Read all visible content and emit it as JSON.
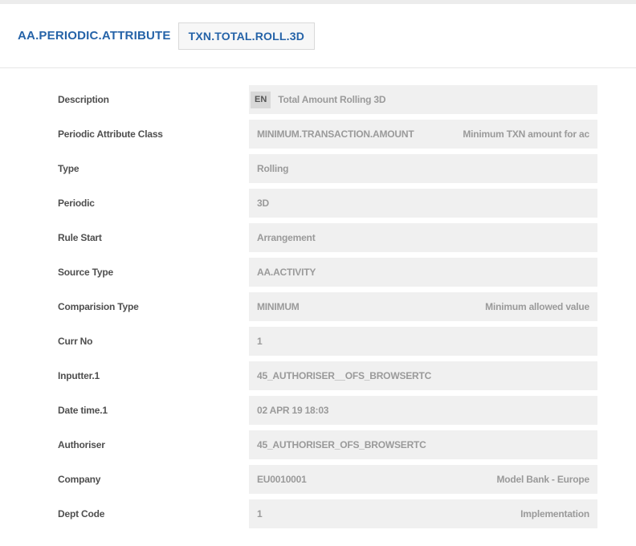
{
  "header": {
    "title": "AA.PERIODIC.ATTRIBUTE",
    "record_id": "TXN.TOTAL.ROLL.3D"
  },
  "colors": {
    "title_blue": "#2563a8",
    "field_background": "#f0f0f0",
    "field_text": "#9a9a9a",
    "label_text": "#4f4f4f",
    "badge_background": "#d8d8d8",
    "top_strip": "#ececec"
  },
  "form": {
    "rows": [
      {
        "label": "Description",
        "badge": "EN",
        "value": "Total Amount Rolling 3D",
        "enrichment": ""
      },
      {
        "label": "Periodic Attribute Class",
        "value": "MINIMUM.TRANSACTION.AMOUNT",
        "enrichment": "Minimum TXN amount for ac"
      },
      {
        "label": "Type",
        "value": "Rolling",
        "enrichment": ""
      },
      {
        "label": "Periodic",
        "value": "3D",
        "enrichment": ""
      },
      {
        "label": "Rule Start",
        "value": "Arrangement",
        "enrichment": ""
      },
      {
        "label": "Source Type",
        "value": "AA.ACTIVITY",
        "enrichment": ""
      },
      {
        "label": "Comparision Type",
        "value": "MINIMUM",
        "enrichment": "Minimum allowed value"
      },
      {
        "label": "Curr No",
        "value": "1",
        "enrichment": ""
      },
      {
        "label": "Inputter.1",
        "value": "45_AUTHORISER__OFS_BROWSERTC",
        "enrichment": ""
      },
      {
        "label": "Date time.1",
        "value": "02 APR 19 18:03",
        "enrichment": ""
      },
      {
        "label": "Authoriser",
        "value": "45_AUTHORISER_OFS_BROWSERTC",
        "enrichment": ""
      },
      {
        "label": "Company",
        "value": "EU0010001",
        "enrichment": "Model Bank - Europe"
      },
      {
        "label": "Dept Code",
        "value": "1",
        "enrichment": "Implementation"
      }
    ]
  }
}
